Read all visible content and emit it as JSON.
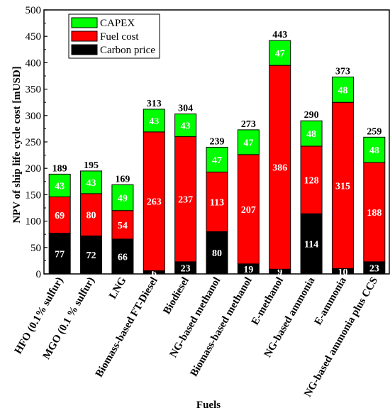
{
  "chart_data": {
    "type": "bar",
    "stacked": true,
    "xlabel": "Fuels",
    "ylabel": "NPV of ship life cycle cost [mUSD]",
    "ylim": [
      0,
      500
    ],
    "yticks": [
      0,
      50,
      100,
      150,
      200,
      250,
      300,
      350,
      400,
      450,
      500
    ],
    "legend_position": "top-left",
    "categories": [
      "HFO (0.1% sulfur)",
      "MGO (0.1 % sulfur)",
      "LNG",
      "Biomass-based FT-Diesel",
      "Biodiesel",
      "NG-based methanol",
      "Biomass-based methanol",
      "E-methanol",
      "NG-based ammonia",
      "E-ammonia",
      "NG-based ammonia plus CCS"
    ],
    "series": [
      {
        "name": "Carbon price",
        "color": "#000000",
        "values": [
          77,
          72,
          66,
          6,
          23,
          80,
          19,
          9,
          114,
          10,
          23
        ]
      },
      {
        "name": "Fuel cost",
        "color": "#ff0000",
        "values": [
          69,
          80,
          54,
          263,
          237,
          113,
          207,
          386,
          128,
          315,
          188
        ]
      },
      {
        "name": "CAPEX",
        "color": "#00ff00",
        "values": [
          43,
          43,
          49,
          43,
          43,
          47,
          47,
          47,
          48,
          48,
          48
        ]
      }
    ],
    "totals": [
      189,
      195,
      169,
      313,
      304,
      239,
      273,
      443,
      290,
      373,
      259
    ],
    "legend_order": [
      "CAPEX",
      "Fuel cost",
      "Carbon price"
    ]
  }
}
